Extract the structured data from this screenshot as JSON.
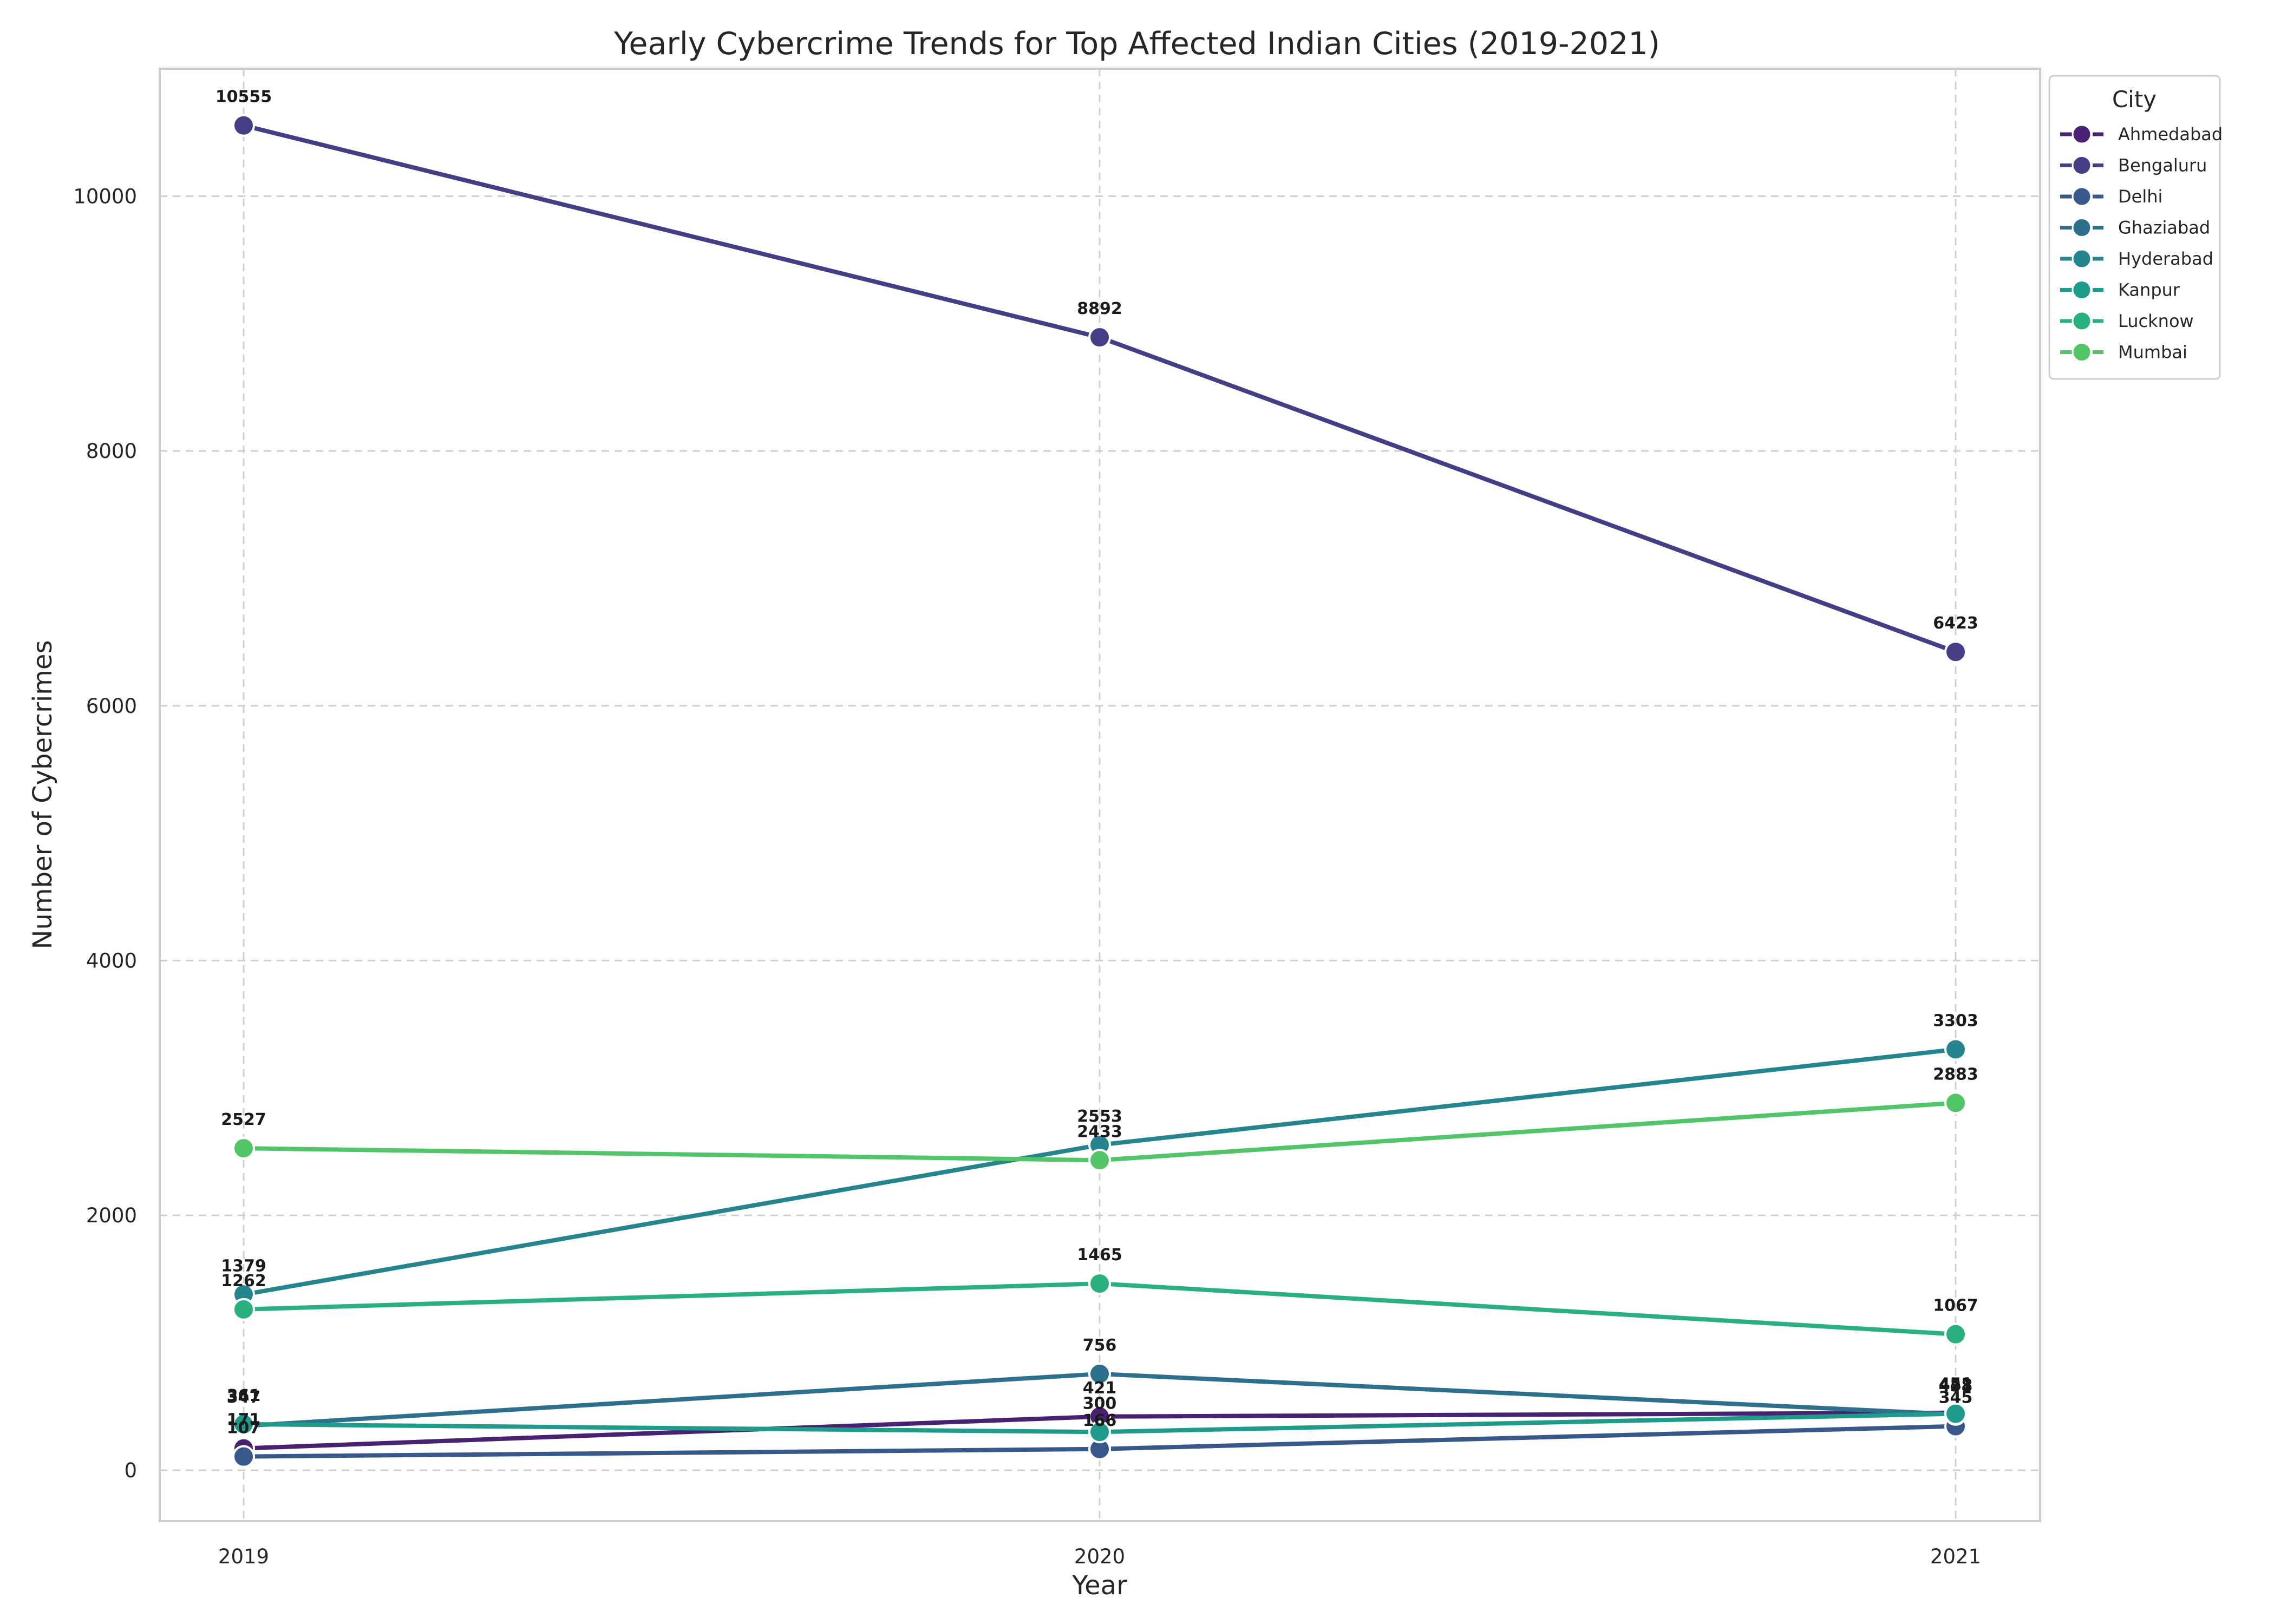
{
  "chart_data": {
    "type": "line",
    "title": "Yearly Cybercrime Trends for Top Affected Indian Cities (2019-2021)",
    "xlabel": "Year",
    "ylabel": "Number of Cybercrimes",
    "x": [
      "2019",
      "2020",
      "2021"
    ],
    "yticks": [
      0,
      2000,
      4000,
      6000,
      8000,
      10000
    ],
    "ylim": [
      -400,
      11000
    ],
    "grid": true,
    "legend_title": "City",
    "legend_position": "outside-top-right",
    "series": [
      {
        "name": "Ahmedabad",
        "color": "#482173",
        "values": [
          171,
          421,
          451
        ]
      },
      {
        "name": "Bengaluru",
        "color": "#433e85",
        "values": [
          10555,
          8892,
          6423
        ]
      },
      {
        "name": "Delhi",
        "color": "#38588c",
        "values": [
          107,
          166,
          345
        ]
      },
      {
        "name": "Ghaziabad",
        "color": "#2d708e",
        "values": [
          347,
          756,
          438
        ]
      },
      {
        "name": "Hyderabad",
        "color": "#25858e",
        "values": [
          1379,
          2553,
          3303
        ]
      },
      {
        "name": "Kanpur",
        "color": "#1e9b8a",
        "values": [
          361,
          300,
          443
        ]
      },
      {
        "name": "Lucknow",
        "color": "#2ab07f",
        "values": [
          1262,
          1465,
          1067
        ]
      },
      {
        "name": "Mumbai",
        "color": "#52c569",
        "values": [
          2527,
          2433,
          2883
        ]
      }
    ]
  }
}
